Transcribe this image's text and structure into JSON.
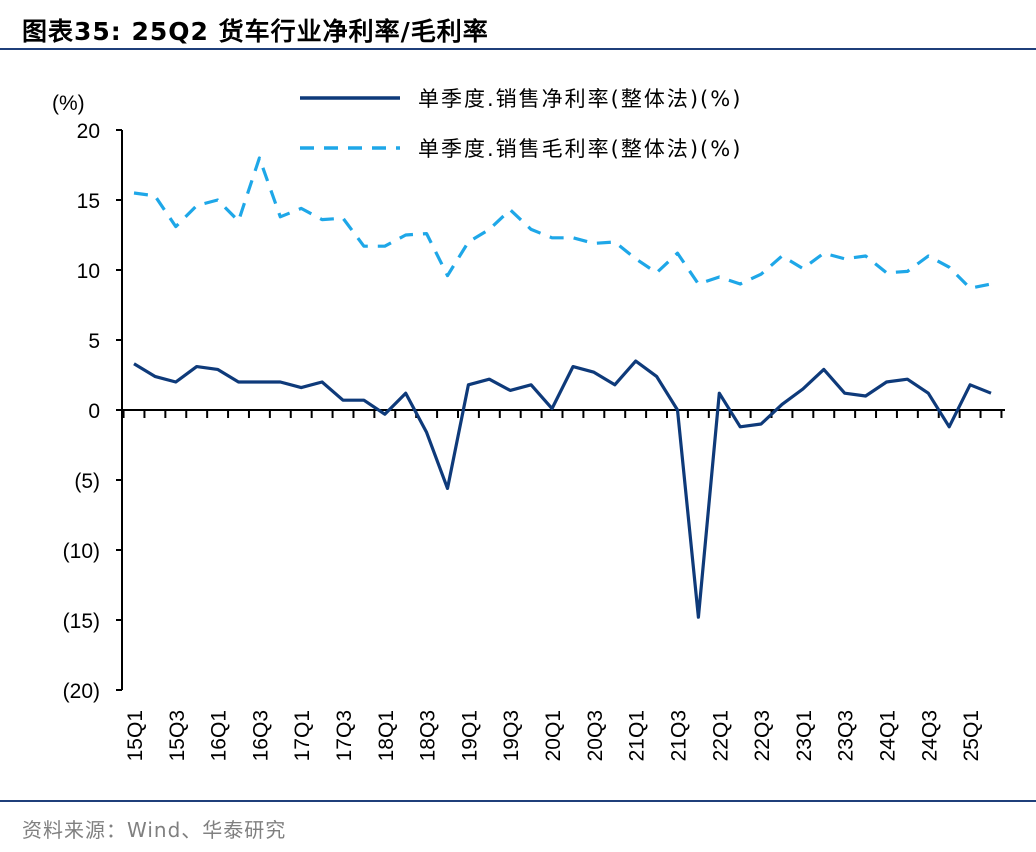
{
  "header": {
    "title": "图表35:  25Q2 货车行业净利率/毛利率"
  },
  "footer": {
    "source": "资料来源：Wind、华泰研究"
  },
  "chart_data": {
    "type": "line",
    "ylabel": "(%)",
    "ylim": [
      -20,
      20
    ],
    "y_ticks": [
      20,
      15,
      10,
      5,
      0,
      -5,
      -10,
      -15,
      -20
    ],
    "y_tick_labels": [
      "20",
      "15",
      "10",
      "5",
      "0",
      "(5)",
      "(10)",
      "(15)",
      "(20)"
    ],
    "x": [
      "15Q1",
      "15Q2",
      "15Q3",
      "15Q4",
      "16Q1",
      "16Q2",
      "16Q3",
      "16Q4",
      "17Q1",
      "17Q2",
      "17Q3",
      "17Q4",
      "18Q1",
      "18Q2",
      "18Q3",
      "18Q4",
      "19Q1",
      "19Q2",
      "19Q3",
      "19Q4",
      "20Q1",
      "20Q2",
      "20Q3",
      "20Q4",
      "21Q1",
      "21Q2",
      "21Q3",
      "21Q4",
      "22Q1",
      "22Q2",
      "22Q3",
      "22Q4",
      "23Q1",
      "23Q2",
      "23Q3",
      "23Q4",
      "24Q1",
      "24Q2",
      "24Q3",
      "24Q4",
      "25Q1",
      "25Q2"
    ],
    "x_tick_labels": [
      "15Q1",
      "15Q3",
      "16Q1",
      "16Q3",
      "17Q1",
      "17Q3",
      "18Q1",
      "18Q3",
      "19Q1",
      "19Q3",
      "20Q1",
      "20Q3",
      "21Q1",
      "21Q3",
      "22Q1",
      "22Q3",
      "23Q1",
      "23Q3",
      "24Q1",
      "24Q3",
      "25Q1"
    ],
    "legend_position": "top",
    "series": [
      {
        "name": "单季度.销售净利率(整体法)(%)",
        "color": "#0e3a7a",
        "style": "solid",
        "values": [
          3.3,
          2.4,
          2.0,
          3.1,
          2.9,
          2.0,
          2.0,
          2.0,
          1.6,
          2.0,
          0.7,
          0.7,
          -0.3,
          1.2,
          -1.6,
          -5.6,
          1.8,
          2.2,
          1.4,
          1.8,
          0.1,
          3.1,
          2.7,
          1.8,
          3.5,
          2.4,
          0.0,
          -14.8,
          1.2,
          -1.2,
          -1.0,
          0.4,
          1.5,
          2.9,
          1.2,
          1.0,
          2.0,
          2.2,
          1.2,
          -1.2,
          1.8,
          1.2
        ]
      },
      {
        "name": "单季度.销售毛利率(整体法)(%)",
        "color": "#1ea7e8",
        "style": "dashed",
        "values": [
          15.5,
          15.3,
          13.1,
          14.6,
          15.0,
          13.5,
          18.0,
          13.8,
          14.4,
          13.6,
          13.7,
          11.7,
          11.7,
          12.5,
          12.6,
          9.6,
          12.0,
          12.9,
          14.3,
          12.9,
          12.3,
          12.3,
          11.9,
          12.0,
          10.8,
          9.8,
          11.2,
          9.0,
          9.5,
          9.0,
          9.7,
          11.0,
          10.1,
          11.2,
          10.8,
          11.0,
          9.8,
          9.9,
          11.0,
          10.2,
          8.7,
          9.0
        ]
      }
    ]
  }
}
